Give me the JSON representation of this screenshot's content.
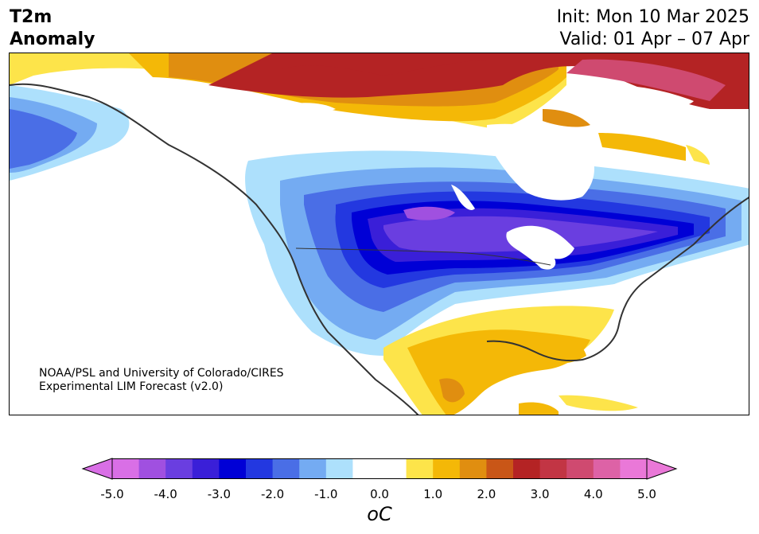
{
  "title": {
    "left_line1": "T2m",
    "left_line2": "Anomaly",
    "init": "Init: Mon 10 Mar 2025",
    "valid": "Valid: 01 Apr – 07 Apr"
  },
  "credit": {
    "line1": "NOAA/PSL and University of Colorado/CIRES",
    "line2": "Experimental LIM Forecast (v2.0)"
  },
  "colorbar": {
    "unit": "oC",
    "min": -5.0,
    "max": 5.0,
    "ticks": [
      "-5.0",
      "-4.0",
      "-3.0",
      "-2.0",
      "-1.0",
      "0.0",
      "1.0",
      "2.0",
      "3.0",
      "4.0",
      "5.0"
    ],
    "colors": [
      "#d96fe6",
      "#a050e0",
      "#6a3ee0",
      "#3a1fd8",
      "#0000d6",
      "#2338e0",
      "#4a6ee6",
      "#74abf2",
      "#ade0fc",
      "#ffffff",
      "#ffffff",
      "#fde44a",
      "#f4b807",
      "#e08e10",
      "#c95617",
      "#b42324",
      "#c23544",
      "#cf4a70",
      "#dd62a6",
      "#ea78d8"
    ],
    "extend_low_color": "#d96fe6",
    "extend_high_color": "#ea78d8"
  },
  "map": {
    "region": "North America",
    "colors": {
      "red": "#b42324",
      "magenta": "#cf4a70",
      "orange": "#e08e10",
      "gold": "#f4b807",
      "yellow": "#fde44a",
      "darkorange": "#c95617",
      "lightblue": "#ade0fc",
      "skyblue": "#74abf2",
      "blue": "#4a6ee6",
      "royal": "#2338e0",
      "navy": "#0000d6",
      "indigo": "#3a1fd8",
      "violet": "#6a3ee0",
      "purple": "#a050e0",
      "orchid": "#d96fe6",
      "coast": "#333333"
    }
  }
}
